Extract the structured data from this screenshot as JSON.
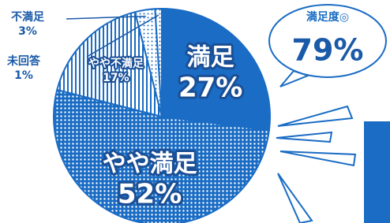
{
  "chart_data": {
    "type": "pie",
    "categories": [
      "満足",
      "やや満足",
      "やや不満足",
      "不満足",
      "未回答"
    ],
    "values": [
      27,
      52,
      17,
      3,
      1
    ],
    "value_labels": [
      "27%",
      "52%",
      "17%",
      "3%",
      "1%"
    ],
    "colors": [
      "#1a6cc4",
      "#1a6cc4",
      "#1a6cc4",
      "#1a6cc4",
      "#1a6cc4"
    ],
    "annotations": [
      {
        "text": "満足度◎"
      },
      {
        "value": 79,
        "label": "79%"
      }
    ]
  }
}
